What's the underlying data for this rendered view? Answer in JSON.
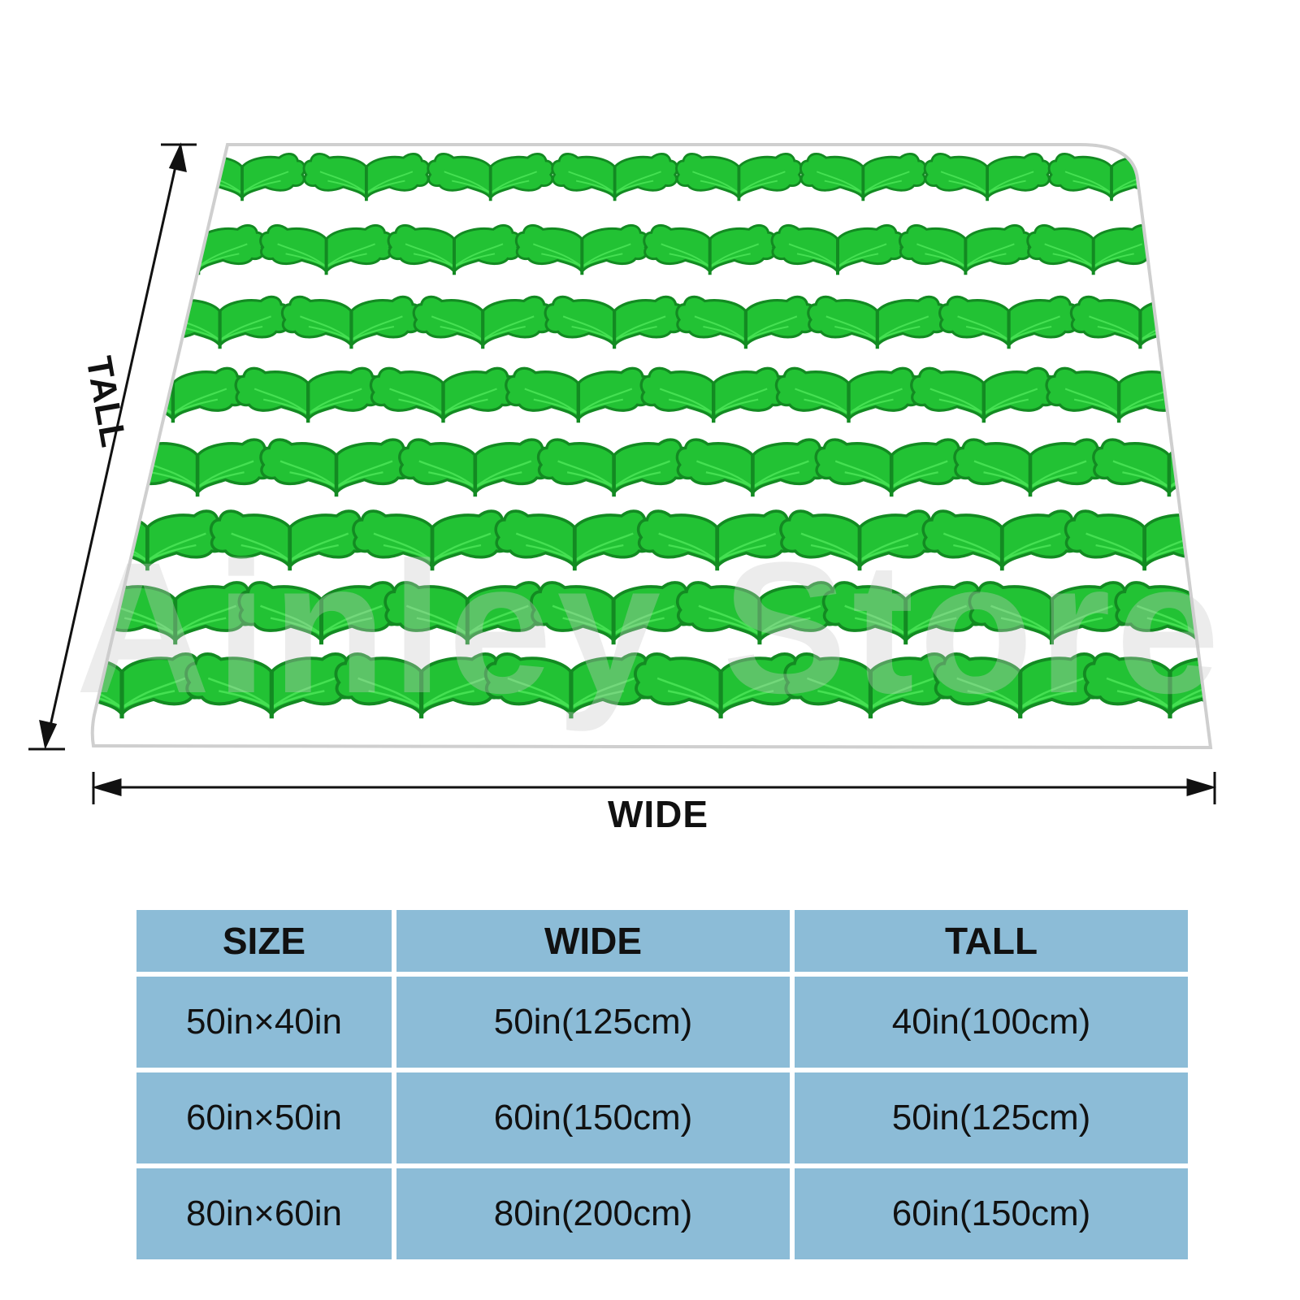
{
  "dimension_labels": {
    "wide": "WIDE",
    "tall": "TALL"
  },
  "watermark_text": "Ainley Store",
  "colors": {
    "leaf": "#22c234",
    "leaf_dark": "#138a22",
    "leaf_light": "#45e052",
    "blanket": "#ffffff",
    "table_cell": "#8cbcd7",
    "arrow": "#111111"
  },
  "pattern": {
    "motif": "ginkgo-leaf-pair-icon",
    "rows": 8,
    "columns": 8
  },
  "size_table": {
    "headers": [
      "SIZE",
      "WIDE",
      "TALL"
    ],
    "rows": [
      [
        "50in×40in",
        "50in(125cm)",
        "40in(100cm)"
      ],
      [
        "60in×50in",
        "60in(150cm)",
        "50in(125cm)"
      ],
      [
        "80in×60in",
        "80in(200cm)",
        "60in(150cm)"
      ]
    ]
  }
}
